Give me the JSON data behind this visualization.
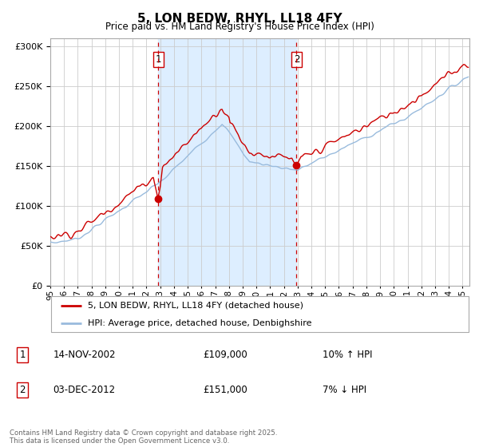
{
  "title": "5, LON BEDW, RHYL, LL18 4FY",
  "subtitle": "Price paid vs. HM Land Registry's House Price Index (HPI)",
  "legend_property": "5, LON BEDW, RHYL, LL18 4FY (detached house)",
  "legend_hpi": "HPI: Average price, detached house, Denbighshire",
  "annotation1_label": "1",
  "annotation1_date": "14-NOV-2002",
  "annotation1_price": "£109,000",
  "annotation1_hpi": "10% ↑ HPI",
  "annotation2_label": "2",
  "annotation2_date": "03-DEC-2012",
  "annotation2_price": "£151,000",
  "annotation2_hpi": "7% ↓ HPI",
  "sale1_year": 2002.87,
  "sale1_price": 109000,
  "sale2_year": 2012.92,
  "sale2_price": 151000,
  "ylim": [
    0,
    310000
  ],
  "xlim_start": 1995,
  "xlim_end": 2025.5,
  "shade_color": "#ddeeff",
  "grid_color": "#cccccc",
  "line_color_property": "#cc0000",
  "line_color_hpi": "#99bbdd",
  "copyright_text": "Contains HM Land Registry data © Crown copyright and database right 2025.\nThis data is licensed under the Open Government Licence v3.0."
}
